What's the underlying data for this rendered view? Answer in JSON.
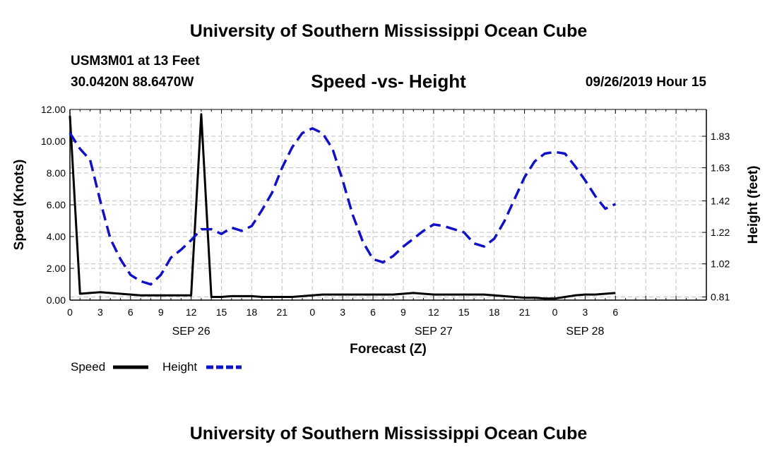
{
  "header": {
    "title": "University of Southern Mississippi Ocean Cube",
    "station": "USM3M01 at 13 Feet",
    "coords": "30.0420N 88.6470W",
    "chart_title": "Speed -vs- Height",
    "datetime": "09/26/2019 Hour 15"
  },
  "footer": {
    "title": "University of Southern Mississippi Ocean Cube"
  },
  "colors": {
    "speed": "#000000",
    "height": "#1010c8",
    "grid": "#c0c0c0"
  },
  "chart_data": {
    "type": "line",
    "title": "Speed -vs- Height",
    "xlabel": "Forecast (Z)",
    "ylabel": "Speed (Knots)",
    "y2label": "Height (feet)",
    "xlim": [
      0,
      63
    ],
    "ylim": [
      0,
      12
    ],
    "y2lim": [
      0.79,
      2.0
    ],
    "x_ticks": [
      0,
      3,
      6,
      9,
      12,
      15,
      18,
      21,
      24,
      27,
      30,
      33,
      36,
      39,
      42,
      45,
      48,
      51,
      54,
      57,
      60,
      63
    ],
    "x_tick_labels": [
      "0",
      "3",
      "6",
      "9",
      "12",
      "15",
      "18",
      "21",
      "0",
      "3",
      "6",
      "9",
      "12",
      "15",
      "18",
      "21",
      "0",
      "3",
      "6"
    ],
    "x_tick_label_positions": [
      0,
      3,
      6,
      9,
      12,
      15,
      18,
      21,
      24,
      27,
      30,
      33,
      36,
      39,
      42,
      45,
      48,
      51,
      54
    ],
    "date_labels": [
      {
        "hour": 12,
        "label": "SEP 26"
      },
      {
        "hour": 36,
        "label": "SEP 27"
      },
      {
        "hour": 51,
        "label": "SEP 28"
      }
    ],
    "y_ticks": [
      0,
      2,
      4,
      6,
      8,
      10,
      12
    ],
    "y_tick_labels": [
      "0.00",
      "2.00",
      "4.00",
      "6.00",
      "8.00",
      "10.00",
      "12.00"
    ],
    "y2_ticks": [
      0.81,
      1.02,
      1.22,
      1.42,
      1.63,
      1.83
    ],
    "y2_tick_labels": [
      "0.81",
      "1.02",
      "1.22",
      "1.42",
      "1.63",
      "1.83"
    ],
    "series": [
      {
        "name": "Speed",
        "axis": "left",
        "x": [
          0,
          1,
          2,
          3,
          4,
          5,
          6,
          7,
          8,
          9,
          10,
          11,
          12,
          13,
          14,
          15,
          16,
          17,
          18,
          19,
          20,
          21,
          22,
          23,
          24,
          25,
          26,
          27,
          28,
          29,
          30,
          31,
          32,
          33,
          34,
          35,
          36,
          37,
          38,
          39,
          40,
          41,
          42,
          43,
          44,
          45,
          46,
          47,
          48,
          49,
          50,
          51,
          52,
          53,
          54
        ],
        "values": [
          11.6,
          0.4,
          0.45,
          0.5,
          0.45,
          0.4,
          0.35,
          0.3,
          0.3,
          0.3,
          0.3,
          0.3,
          0.3,
          11.7,
          0.2,
          0.2,
          0.25,
          0.25,
          0.25,
          0.2,
          0.2,
          0.2,
          0.2,
          0.25,
          0.3,
          0.35,
          0.35,
          0.35,
          0.35,
          0.35,
          0.35,
          0.35,
          0.35,
          0.4,
          0.45,
          0.4,
          0.35,
          0.35,
          0.35,
          0.35,
          0.35,
          0.35,
          0.3,
          0.25,
          0.2,
          0.15,
          0.15,
          0.1,
          0.1,
          0.2,
          0.3,
          0.35,
          0.35,
          0.4,
          0.45
        ]
      },
      {
        "name": "Height",
        "axis": "right",
        "x": [
          0,
          1,
          2,
          3,
          4,
          5,
          6,
          7,
          8,
          9,
          10,
          11,
          12,
          13,
          14,
          15,
          16,
          17,
          18,
          19,
          20,
          21,
          22,
          23,
          24,
          25,
          26,
          27,
          28,
          29,
          30,
          31,
          32,
          33,
          34,
          35,
          36,
          37,
          38,
          39,
          40,
          41,
          42,
          43,
          44,
          45,
          46,
          47,
          48,
          49,
          50,
          51,
          52,
          53,
          54
        ],
        "values": [
          1.85,
          1.75,
          1.68,
          1.42,
          1.18,
          1.05,
          0.95,
          0.91,
          0.89,
          0.95,
          1.06,
          1.11,
          1.17,
          1.24,
          1.24,
          1.21,
          1.25,
          1.23,
          1.26,
          1.36,
          1.47,
          1.63,
          1.76,
          1.85,
          1.88,
          1.85,
          1.75,
          1.55,
          1.33,
          1.16,
          1.05,
          1.03,
          1.07,
          1.13,
          1.18,
          1.23,
          1.27,
          1.26,
          1.24,
          1.22,
          1.15,
          1.13,
          1.18,
          1.29,
          1.43,
          1.57,
          1.67,
          1.72,
          1.73,
          1.72,
          1.64,
          1.55,
          1.45,
          1.37,
          1.4
        ]
      }
    ],
    "legend": [
      {
        "label": "Speed",
        "series": "Speed"
      },
      {
        "label": "Height",
        "series": "Height"
      }
    ],
    "legend_position": "bottom-left"
  }
}
